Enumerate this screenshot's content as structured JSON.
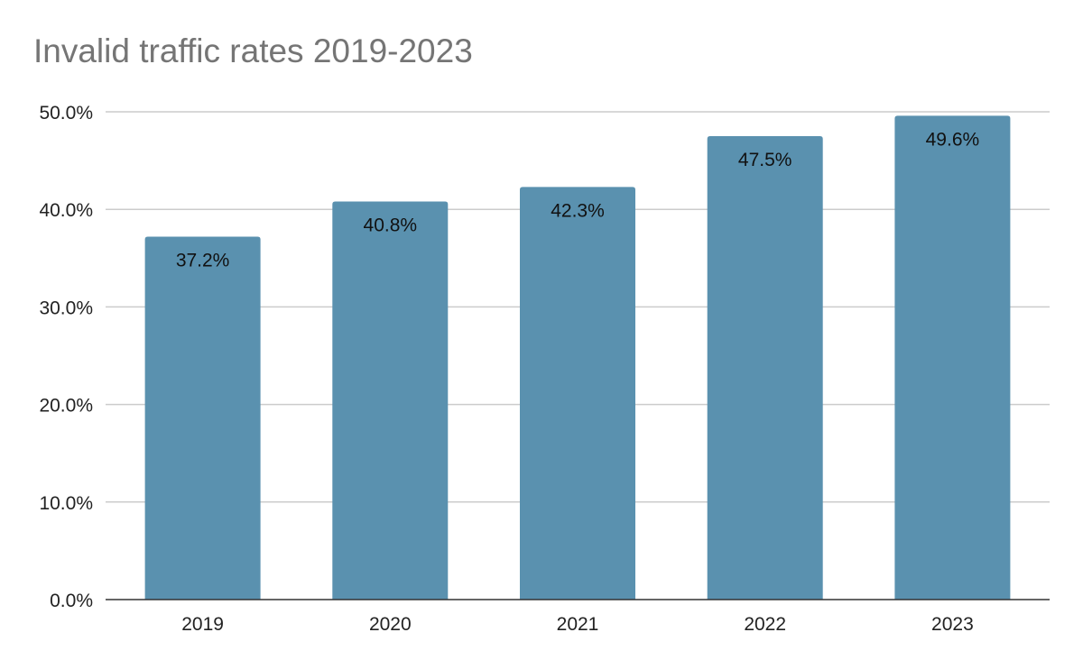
{
  "chart_data": {
    "type": "bar",
    "title": "Invalid traffic rates 2019-2023",
    "xlabel": "",
    "ylabel": "",
    "categories": [
      "2019",
      "2020",
      "2021",
      "2022",
      "2023"
    ],
    "values": [
      37.2,
      40.8,
      42.3,
      47.5,
      49.6
    ],
    "data_labels": [
      "37.2%",
      "40.8%",
      "42.3%",
      "47.5%",
      "49.6%"
    ],
    "ylim": [
      0,
      50
    ],
    "y_ticks": [
      0,
      10,
      20,
      30,
      40,
      50
    ],
    "y_tick_labels": [
      "0.0%",
      "10.0%",
      "20.0%",
      "30.0%",
      "40.0%",
      "50.0%"
    ],
    "grid": true,
    "legend": "none",
    "colors": {
      "bar": "#5a91af",
      "grid": "#cccccc",
      "axis": "#333333",
      "title": "#757575"
    }
  }
}
